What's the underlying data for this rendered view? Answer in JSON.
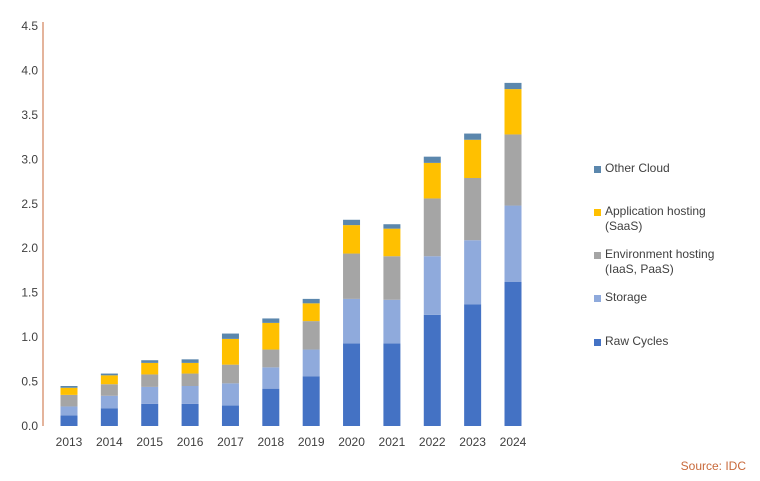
{
  "chart_data": {
    "type": "bar",
    "stacked": true,
    "title": "",
    "xlabel": "",
    "ylabel": "",
    "categories": [
      "2013",
      "2014",
      "2015",
      "2016",
      "2017",
      "2018",
      "2019",
      "2020",
      "2021",
      "2022",
      "2023",
      "2024"
    ],
    "ylim": [
      0,
      4.5
    ],
    "yticks": [
      "0.0",
      "0.5",
      "1.0",
      "1.5",
      "2.0",
      "2.5",
      "3.0",
      "3.5",
      "4.0",
      "4.5"
    ],
    "grid": false,
    "legend_position": "right",
    "series": [
      {
        "name": "Raw Cycles",
        "color": "#4472c4",
        "values": [
          0.12,
          0.2,
          0.25,
          0.25,
          0.23,
          0.42,
          0.56,
          0.93,
          0.93,
          1.25,
          1.37,
          1.62
        ]
      },
      {
        "name": "Storage",
        "color": "#8faadc",
        "values": [
          0.1,
          0.14,
          0.19,
          0.2,
          0.25,
          0.24,
          0.3,
          0.5,
          0.49,
          0.66,
          0.72,
          0.86
        ]
      },
      {
        "name": "Environment hosting\n(IaaS, PaaS)",
        "color": "#a5a5a5",
        "values": [
          0.13,
          0.13,
          0.14,
          0.14,
          0.21,
          0.2,
          0.32,
          0.51,
          0.49,
          0.65,
          0.7,
          0.8
        ]
      },
      {
        "name": "Application hosting\n(SaaS)",
        "color": "#ffc000",
        "values": [
          0.08,
          0.1,
          0.13,
          0.12,
          0.29,
          0.3,
          0.2,
          0.32,
          0.31,
          0.4,
          0.43,
          0.51
        ]
      },
      {
        "name": "Other Cloud",
        "color": "#5b87ad",
        "values": [
          0.02,
          0.02,
          0.03,
          0.04,
          0.06,
          0.05,
          0.05,
          0.06,
          0.05,
          0.07,
          0.07,
          0.07
        ]
      }
    ]
  },
  "source_text": "Source: IDC"
}
